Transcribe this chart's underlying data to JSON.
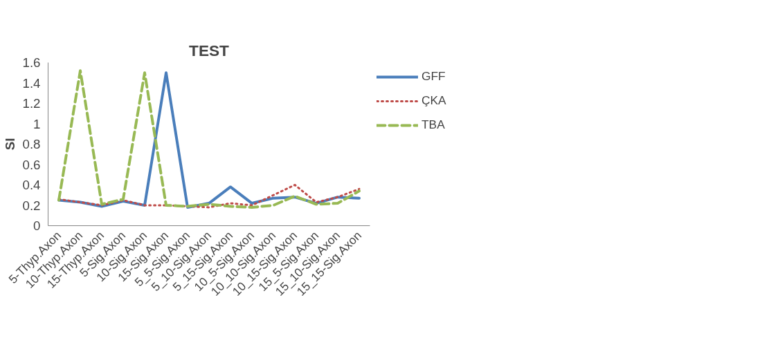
{
  "chart_data": {
    "type": "line",
    "title": "TEST",
    "ylabel": "SI",
    "categories": [
      "5-Thyp.Axon",
      "10-Thyp.Axon",
      "15-Thyp.Axon",
      "5-Sig.Axon",
      "10-Sig.Axon",
      "15-Sig.Axon",
      "5_5-Sig.Axon",
      "5_10-Sig.Axon",
      "5_15-Sig.Axon",
      "10_5-Sig.Axon",
      "10_10-Sig.Axon",
      "10_15-Sig.Axon",
      "15_5-Sig.Axon",
      "15_10-Sig.Axon",
      "15_15-Sig.Axon"
    ],
    "series": [
      {
        "name": "GFF",
        "color": "#4a7ebb",
        "line_style": "solid",
        "values": [
          0.25,
          0.23,
          0.19,
          0.24,
          0.2,
          1.5,
          0.18,
          0.22,
          0.38,
          0.22,
          0.27,
          0.28,
          0.22,
          0.28,
          0.27
        ]
      },
      {
        "name": "ÇKA",
        "color": "#be4b48",
        "line_style": "dotted",
        "values": [
          0.26,
          0.23,
          0.2,
          0.25,
          0.2,
          0.2,
          0.19,
          0.18,
          0.22,
          0.2,
          0.3,
          0.4,
          0.23,
          0.28,
          0.36
        ]
      },
      {
        "name": "TBA",
        "color": "#98b954",
        "line_style": "dashed",
        "values": [
          0.25,
          1.52,
          0.21,
          0.26,
          1.5,
          0.2,
          0.19,
          0.21,
          0.19,
          0.18,
          0.2,
          0.29,
          0.21,
          0.22,
          0.34
        ]
      }
    ],
    "ylim": [
      0,
      1.6
    ],
    "yticks": [
      0,
      0.2,
      0.4,
      0.6,
      0.8,
      1,
      1.2,
      1.4,
      1.6
    ],
    "grid": false,
    "legend": "top right",
    "marker": "none"
  }
}
